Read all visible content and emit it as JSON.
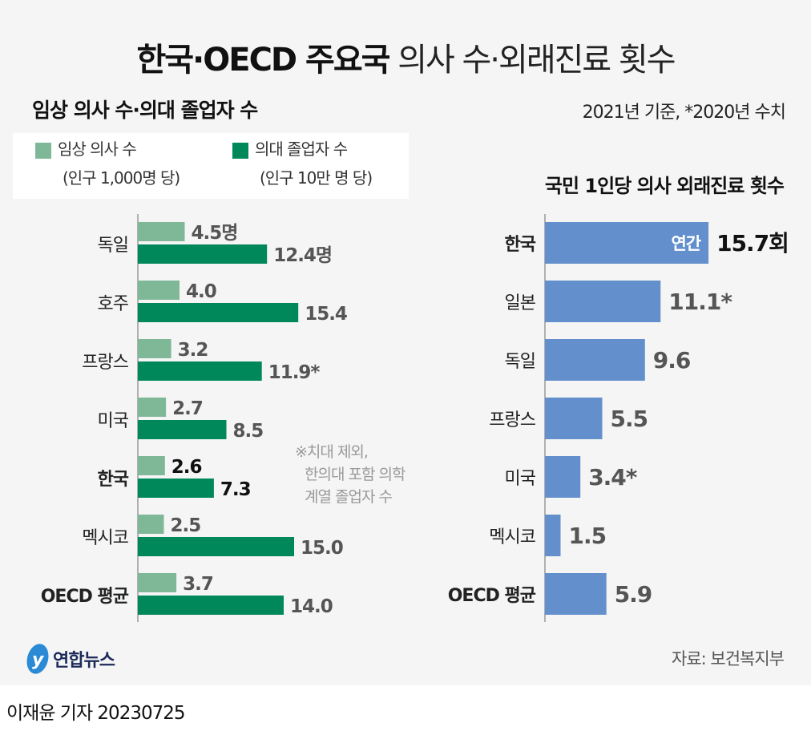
{
  "title": {
    "bold": "한국·OECD 주요국",
    "light": "의사 수·외래진료 횟수"
  },
  "basis": "2021년 기준, *2020년 수치",
  "source": "자료: 보건복지부",
  "byline": "이재윤 기자  20230725",
  "logo_text": "연합뉴스",
  "chart_data": [
    {
      "type": "bar",
      "orientation": "horizontal",
      "title": "임상 의사 수·의대 졸업자 수",
      "categories": [
        "독일",
        "호주",
        "프랑스",
        "미국",
        "한국",
        "멕시코",
        "OECD 평균"
      ],
      "highlight": "한국",
      "series": [
        {
          "name": "임상 의사 수",
          "name_sub": "(인구 1,000명 당)",
          "color": "#7fb897",
          "values": [
            4.5,
            4.0,
            3.2,
            2.7,
            2.6,
            2.5,
            3.7
          ],
          "labels": [
            "4.5명",
            "4.0",
            "3.2",
            "2.7",
            "2.6",
            "2.5",
            "3.7"
          ]
        },
        {
          "name": "의대 졸업자 수",
          "name_sub": "(인구 10만 명 당)",
          "color": "#00875a",
          "values": [
            12.4,
            15.4,
            11.9,
            8.5,
            7.3,
            15.0,
            14.0
          ],
          "labels": [
            "12.4명",
            "15.4",
            "11.9*",
            "8.5",
            "7.3",
            "15.0",
            "14.0"
          ]
        }
      ],
      "note": [
        "※치대 제외,",
        "한의대 포함 의학",
        "계열 졸업자 수"
      ],
      "legend": "top-left"
    },
    {
      "type": "bar",
      "orientation": "horizontal",
      "title": "국민 1인당 의사 외래진료 횟수",
      "categories": [
        "한국",
        "일본",
        "독일",
        "프랑스",
        "미국",
        "멕시코",
        "OECD 평균"
      ],
      "highlight": "한국",
      "color": "#6390cc",
      "values": [
        15.7,
        11.1,
        9.6,
        5.5,
        3.4,
        1.5,
        5.9
      ],
      "labels": [
        "15.7회",
        "11.1*",
        "9.6",
        "5.5",
        "3.4*",
        "1.5",
        "5.9"
      ],
      "inbar_label": "연간"
    }
  ]
}
